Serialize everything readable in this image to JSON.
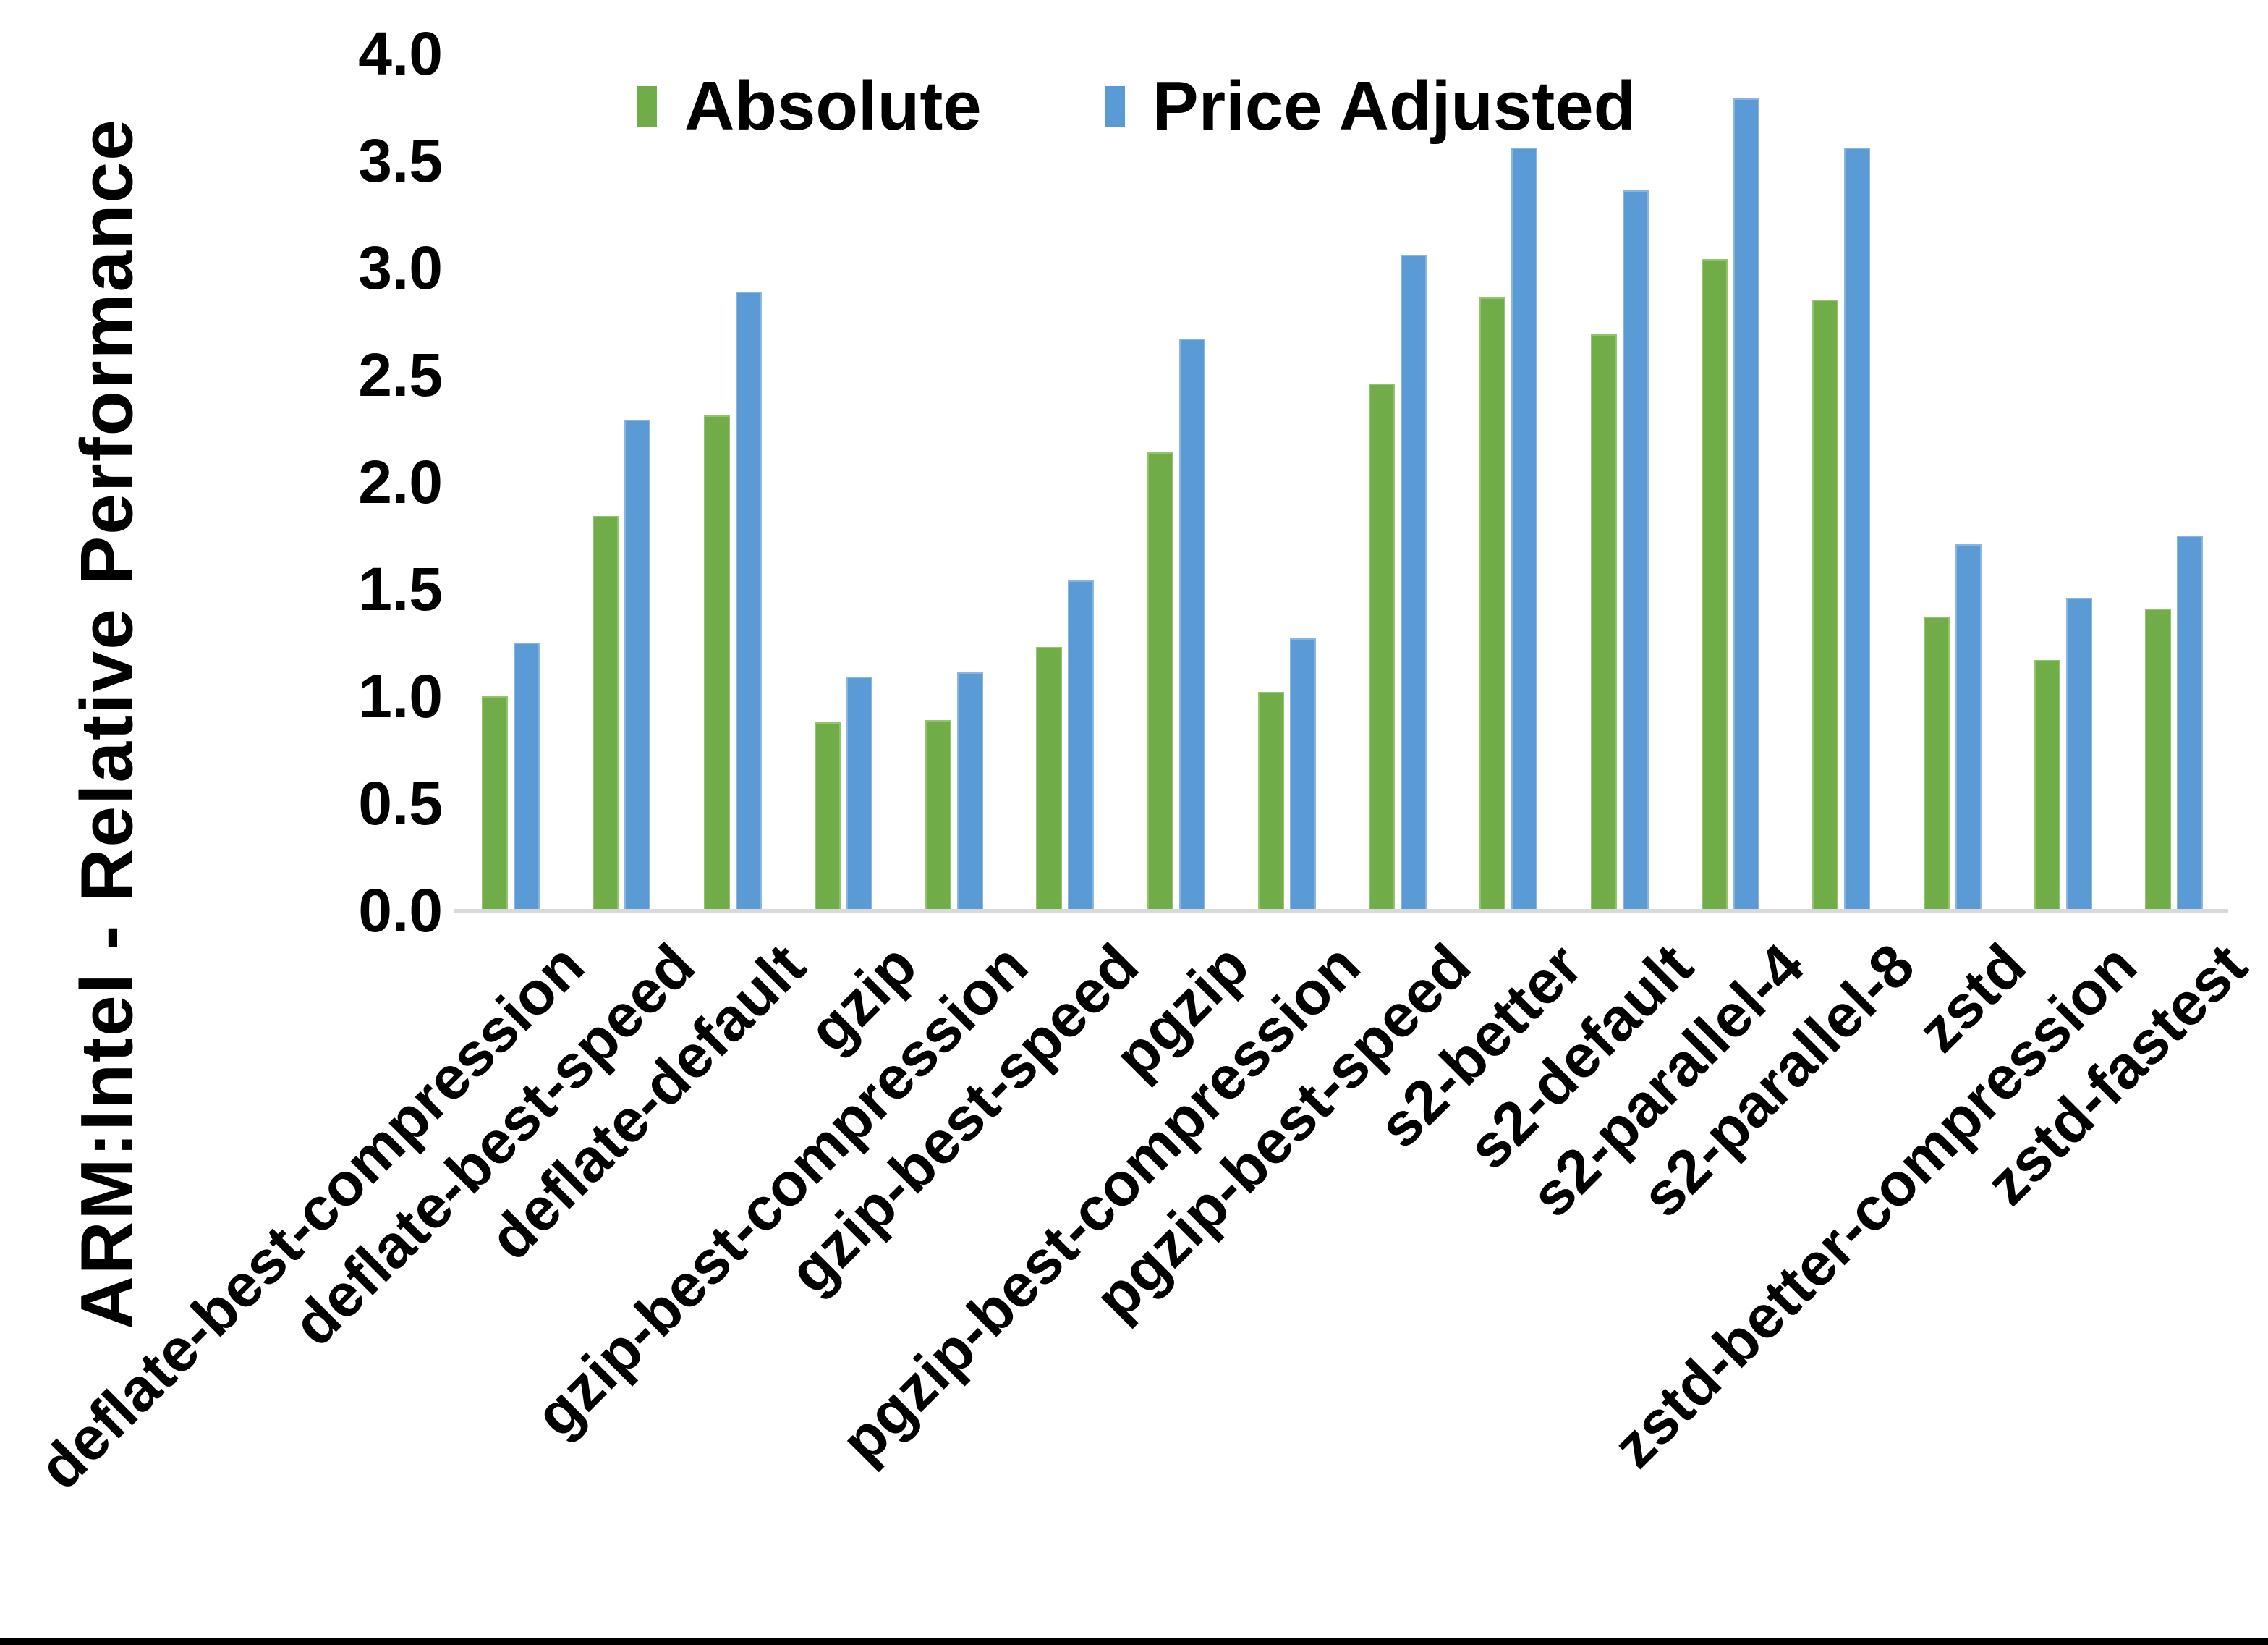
{
  "chart_data": {
    "type": "bar",
    "title": "",
    "xlabel": "",
    "ylabel": "ARM:Intel - Relative Performance",
    "ylim": [
      0.0,
      4.0
    ],
    "ytick_step": 0.5,
    "yticks": [
      "0.0",
      "0.5",
      "1.0",
      "1.5",
      "2.0",
      "2.5",
      "3.0",
      "3.5",
      "4.0"
    ],
    "grid": false,
    "legend_position": "top-center-inside",
    "categories": [
      "deflate-best-compression",
      "deflate-best-speed",
      "deflate-default",
      "gzip",
      "gzip-best-compression",
      "gzip-best-speed",
      "pgzip",
      "pgzip-best-compression",
      "pgzip-best-speed",
      "s2-better",
      "s2-default",
      "s2-parallel-4",
      "s2-parallel-8",
      "zstd",
      "zstd-better-compression",
      "zstd-fastest"
    ],
    "series": [
      {
        "name": "Absolute",
        "color": "#70AC47",
        "border_color": "#93C46C",
        "values": [
          1.0,
          1.84,
          2.31,
          0.88,
          0.89,
          1.23,
          2.14,
          1.02,
          2.46,
          2.86,
          2.69,
          3.04,
          2.85,
          1.37,
          1.17,
          1.41
        ]
      },
      {
        "name": "Price Adjusted",
        "color": "#5B9BD5",
        "border_color": "#8AB5E2",
        "values": [
          1.25,
          2.29,
          2.89,
          1.09,
          1.11,
          1.54,
          2.67,
          1.27,
          3.06,
          3.56,
          3.36,
          3.79,
          3.56,
          1.71,
          1.46,
          1.75
        ]
      }
    ]
  },
  "colors": {
    "background": "#FFFFFF",
    "text": "#000000",
    "axis_line": "#D9D9D9",
    "bottom_border": "#000000"
  }
}
